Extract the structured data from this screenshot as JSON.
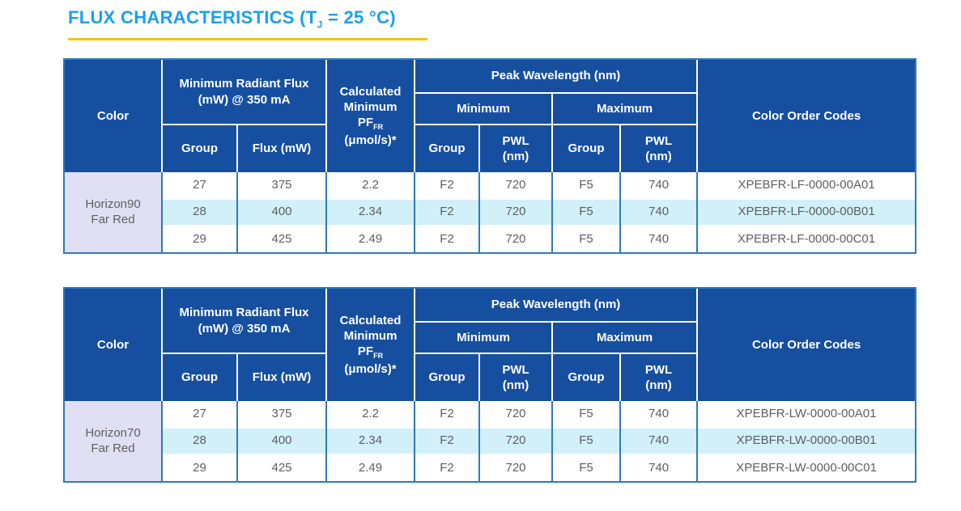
{
  "colors": {
    "header_blue": "#164FA0",
    "border_blue": "#2E7ABD",
    "highlight": "#D1F0FA",
    "lavender": "#E0DFF3",
    "title_blue": "#1AA0EC",
    "accent_yellow": "#F5C400",
    "text_gray": "#5E5F61"
  },
  "header": {
    "title_pre": "FLUX CHARACTERISTICS (T",
    "title_sub": "J",
    "title_post": " = 25 °C)"
  },
  "table_headers": {
    "color": "Color",
    "radiant_flux_l1": "Minimum Radiant Flux",
    "radiant_flux_l2": "(mW) @ 350 mA",
    "group": "Group",
    "flux_mw": "Flux (mW)",
    "calc_l1": "Calculated",
    "calc_l2": "Minimum",
    "calc_pf": "PF",
    "calc_pf_sub": "FR",
    "calc_l4": "(μmol/s)*",
    "peak_wavelength": "Peak Wavelength (nm)",
    "minimum": "Minimum",
    "maximum": "Maximum",
    "pwl_l1": "PWL",
    "pwl_l2": "(nm)",
    "codes": "Color Order Codes"
  },
  "tables": [
    {
      "color_l1": "Horizon90",
      "color_l2": "Far Red",
      "rows": [
        {
          "group": "27",
          "flux": "375",
          "pf": "2.2",
          "min_group": "F2",
          "min_pwl": "720",
          "max_group": "F5",
          "max_pwl": "740",
          "code": "XPEBFR-LF-0000-00A01"
        },
        {
          "group": "28",
          "flux": "400",
          "pf": "2.34",
          "min_group": "F2",
          "min_pwl": "720",
          "max_group": "F5",
          "max_pwl": "740",
          "code": "XPEBFR-LF-0000-00B01"
        },
        {
          "group": "29",
          "flux": "425",
          "pf": "2.49",
          "min_group": "F2",
          "min_pwl": "720",
          "max_group": "F5",
          "max_pwl": "740",
          "code": "XPEBFR-LF-0000-00C01"
        }
      ]
    },
    {
      "color_l1": "Horizon70",
      "color_l2": "Far Red",
      "rows": [
        {
          "group": "27",
          "flux": "375",
          "pf": "2.2",
          "min_group": "F2",
          "min_pwl": "720",
          "max_group": "F5",
          "max_pwl": "740",
          "code": "XPEBFR-LW-0000-00A01"
        },
        {
          "group": "28",
          "flux": "400",
          "pf": "2.34",
          "min_group": "F2",
          "min_pwl": "720",
          "max_group": "F5",
          "max_pwl": "740",
          "code": "XPEBFR-LW-0000-00B01"
        },
        {
          "group": "29",
          "flux": "425",
          "pf": "2.49",
          "min_group": "F2",
          "min_pwl": "720",
          "max_group": "F5",
          "max_pwl": "740",
          "code": "XPEBFR-LW-0000-00C01"
        }
      ]
    }
  ]
}
